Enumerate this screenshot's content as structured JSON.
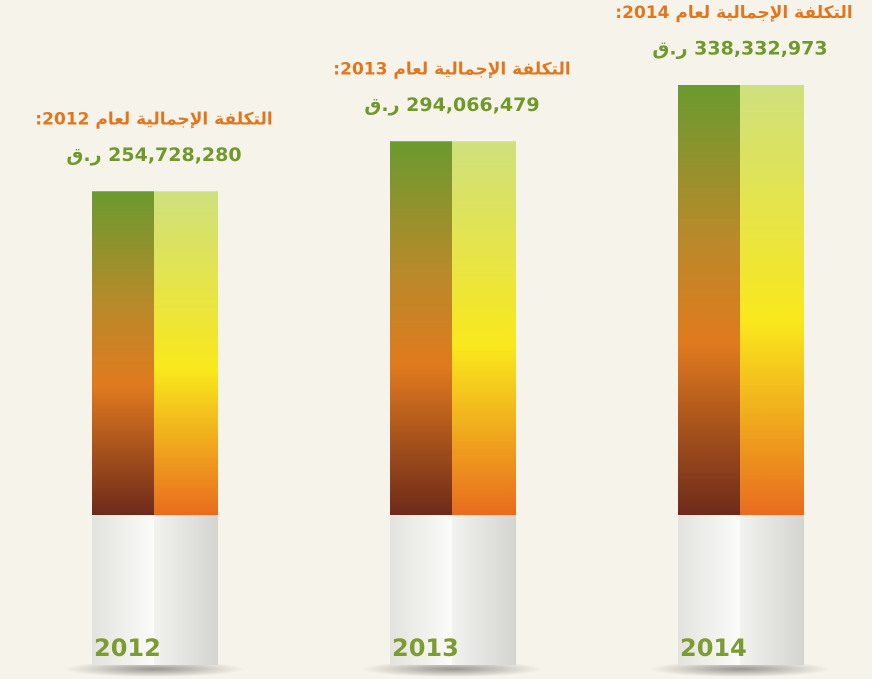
{
  "chart_data": {
    "type": "bar",
    "categories": [
      "2012",
      "2013",
      "2014"
    ],
    "values": [
      254728280,
      294066479,
      338332973
    ],
    "value_labels": [
      "254,728,280 ر.ق",
      "294,066,479 ر.ق",
      "338,332,973 ر.ق"
    ],
    "annotations": [
      "التكلفة الإجمالية لعام 2012:",
      "التكلفة الإجمالية لعام 2013:",
      "التكلفة الإجمالية لعام 2014:"
    ]
  }
}
